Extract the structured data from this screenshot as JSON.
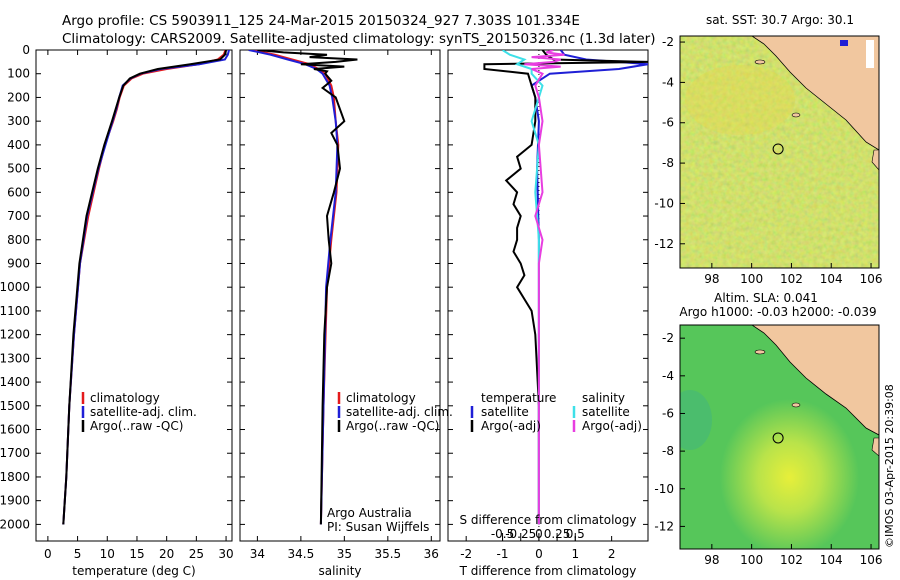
{
  "header": {
    "line1": "Argo profile: CS 5903911_125 24-Mar-2015 20150324_927 7.303S 101.334E",
    "line2": "Climatology: CARS2009. Satellite-adjusted climatology: synTS_20150326.nc (1.3d later)"
  },
  "colors": {
    "climatology": "#e41a1c",
    "satellite": "#1f1fd6",
    "argo": "#000000",
    "satellite_s": "#3ee0e8",
    "argo_s": "#e83ee0",
    "land": "#f1c79f",
    "sst_field": "#a6d84a",
    "sla_field": "#56c65a"
  },
  "chart_data": [
    {
      "type": "line",
      "id": "temperature",
      "xlabel": "temperature (deg C)",
      "ylabel": "",
      "xlim": [
        -2,
        31
      ],
      "ylim": [
        2070,
        0
      ],
      "xticks": [
        0,
        5,
        10,
        15,
        20,
        25,
        30
      ],
      "yticks": [
        0,
        100,
        200,
        300,
        400,
        500,
        600,
        700,
        800,
        900,
        1000,
        1100,
        1200,
        1300,
        1400,
        1500,
        1600,
        1700,
        1800,
        1900,
        2000
      ],
      "legend": [
        "climatology",
        "satellite-adj. clim.",
        "Argo(..raw -QC)"
      ],
      "series": [
        {
          "name": "climatology",
          "depth": [
            0,
            20,
            40,
            60,
            80,
            100,
            120,
            150,
            200,
            250,
            300,
            400,
            500,
            700,
            900,
            1200,
            1500,
            1800,
            2000
          ],
          "values": [
            29.9,
            29.6,
            28.6,
            25.5,
            20.0,
            16.0,
            14.1,
            12.8,
            12.1,
            11.6,
            11.0,
            9.6,
            8.6,
            6.8,
            5.4,
            4.4,
            3.6,
            3.1,
            2.6
          ]
        },
        {
          "name": "satellite",
          "depth": [
            0,
            20,
            40,
            60,
            80,
            100,
            120,
            150,
            200,
            250,
            300,
            400,
            500,
            700,
            900,
            1200,
            1500,
            1800,
            2000
          ],
          "values": [
            30.5,
            30.3,
            29.8,
            25.5,
            19.0,
            15.6,
            13.9,
            12.6,
            12.0,
            11.5,
            10.9,
            9.7,
            8.5,
            6.6,
            5.4,
            4.4,
            3.6,
            3.1,
            2.6
          ]
        },
        {
          "name": "argo",
          "depth": [
            0,
            20,
            40,
            60,
            80,
            100,
            120,
            150,
            200,
            250,
            300,
            400,
            500,
            700,
            900,
            1200,
            1500,
            1800,
            2000
          ],
          "values": [
            30.0,
            29.8,
            29.0,
            24.0,
            18.5,
            15.5,
            13.8,
            12.7,
            12.0,
            11.4,
            10.8,
            9.5,
            8.4,
            6.5,
            5.3,
            4.3,
            3.6,
            3.1,
            2.6
          ]
        }
      ]
    },
    {
      "type": "line",
      "id": "salinity",
      "xlabel": "salinity",
      "xlim": [
        33.8,
        36.1
      ],
      "ylim": [
        2070,
        0
      ],
      "xticks": [
        34,
        34.5,
        35,
        35.5,
        36
      ],
      "legend": [
        "climatology",
        "satellite-adj. clim.",
        "Argo(..raw -QC)"
      ],
      "annotation": [
        "Argo Australia",
        "PI: Susan Wijffels"
      ],
      "series": [
        {
          "name": "climatology",
          "depth": [
            0,
            20,
            40,
            60,
            80,
            100,
            150,
            200,
            300,
            400,
            600,
            800,
            1000,
            1500,
            2000
          ],
          "values": [
            33.95,
            34.2,
            34.4,
            34.6,
            34.7,
            34.78,
            34.85,
            34.88,
            34.9,
            34.93,
            34.91,
            34.85,
            34.8,
            34.76,
            34.73
          ]
        },
        {
          "name": "satellite",
          "depth": [
            0,
            20,
            40,
            60,
            80,
            100,
            150,
            200,
            300,
            400,
            600,
            800,
            1000,
            1500,
            2000
          ],
          "values": [
            33.9,
            34.15,
            34.35,
            34.55,
            34.68,
            34.75,
            34.83,
            34.86,
            34.9,
            34.92,
            34.9,
            34.84,
            34.79,
            34.76,
            34.73
          ]
        },
        {
          "name": "argo",
          "depth": [
            0,
            10,
            20,
            30,
            40,
            50,
            60,
            70,
            80,
            90,
            100,
            130,
            160,
            200,
            250,
            300,
            350,
            400,
            500,
            600,
            700,
            800,
            900,
            1000,
            1200,
            1500,
            2000
          ],
          "values": [
            34.0,
            34.3,
            34.8,
            34.6,
            35.15,
            34.9,
            34.5,
            35.0,
            34.65,
            34.8,
            34.78,
            34.85,
            34.75,
            34.9,
            34.95,
            35.0,
            34.85,
            34.92,
            34.95,
            34.88,
            34.8,
            34.82,
            34.85,
            34.8,
            34.77,
            34.75,
            34.73
          ]
        }
      ]
    },
    {
      "type": "line",
      "id": "difference",
      "xlabel": "T difference from climatology",
      "xlabel_top": "S difference from climatology",
      "xlim": [
        -2.5,
        3.0
      ],
      "ylim": [
        2070,
        0
      ],
      "xticks": [
        -2,
        -1,
        0,
        1,
        2
      ],
      "xticks_s": [
        -0.5,
        -0.25,
        0,
        0.25,
        0.5
      ],
      "legend_t": {
        "title": "temperature",
        "items": [
          "satellite",
          "Argo(-adj)"
        ]
      },
      "legend_s": {
        "title": "salinity",
        "items": [
          "satellite",
          "Argo(-adj)"
        ]
      },
      "series": [
        {
          "name": "T satellite",
          "depth": [
            0,
            20,
            40,
            60,
            80,
            100,
            150,
            200,
            300,
            500,
            800,
            1200,
            2000
          ],
          "values": [
            0.6,
            0.7,
            1.3,
            3.0,
            2.2,
            0.3,
            -0.2,
            -0.1,
            0.0,
            -0.05,
            0.0,
            0.0,
            0.0
          ]
        },
        {
          "name": "T argo",
          "depth": [
            0,
            20,
            40,
            50,
            60,
            80,
            100,
            150,
            200,
            300,
            400,
            450,
            500,
            550,
            600,
            650,
            700,
            750,
            800,
            850,
            900,
            950,
            1000,
            1050,
            1100,
            1200,
            1500,
            2000
          ],
          "values": [
            0.1,
            0.2,
            0.4,
            3.0,
            -1.5,
            -1.5,
            -0.3,
            -0.2,
            -0.1,
            -0.1,
            -0.2,
            -0.6,
            -0.5,
            -0.9,
            -0.6,
            -0.7,
            -0.5,
            -0.6,
            -0.6,
            -0.7,
            -0.5,
            -0.4,
            -0.6,
            -0.4,
            -0.2,
            -0.1,
            0.0,
            0.0
          ]
        },
        {
          "name": "S satellite",
          "depth": [
            0,
            20,
            40,
            60,
            80,
            100,
            150,
            200,
            300,
            400,
            600,
            800,
            1000,
            1200,
            1500,
            2000
          ],
          "values": [
            -0.5,
            -0.4,
            -0.2,
            -0.3,
            -0.1,
            -0.1,
            0.05,
            0.0,
            -0.1,
            0.0,
            -0.05,
            0.0,
            0.0,
            0.0,
            0.0,
            0.0
          ]
        },
        {
          "name": "S argo",
          "depth": [
            0,
            10,
            20,
            30,
            40,
            50,
            60,
            70,
            80,
            100,
            150,
            200,
            300,
            400,
            600,
            700,
            800,
            900,
            1000,
            1500,
            2000
          ],
          "values": [
            0.2,
            0.1,
            0.35,
            -0.1,
            0.3,
            0.2,
            -0.2,
            0.3,
            -0.1,
            0.05,
            -0.05,
            0.0,
            0.05,
            0.0,
            0.05,
            -0.05,
            0.05,
            0.0,
            0.0,
            0.0,
            0.0
          ]
        }
      ]
    },
    {
      "type": "heatmap",
      "id": "sst_map",
      "title": "sat. SST: 30.7  Argo: 30.1",
      "xlim": [
        96.4,
        106.4
      ],
      "ylim": [
        -13.2,
        -1.7
      ],
      "xticks": [
        98,
        100,
        102,
        104,
        106
      ],
      "yticks": [
        -2,
        -4,
        -6,
        -8,
        -10,
        -12
      ],
      "marker": {
        "lon": 101.33,
        "lat": -7.3
      }
    },
    {
      "type": "heatmap",
      "id": "sla_map",
      "title1": "Altim. SLA: 0.041",
      "title2": "Argo h1000: -0.03 h2000: -0.039",
      "xlim": [
        96.4,
        106.4
      ],
      "ylim": [
        -13.2,
        -1.3
      ],
      "xticks": [
        98,
        100,
        102,
        104,
        106
      ],
      "yticks": [
        -2,
        -4,
        -6,
        -8,
        -10,
        -12
      ],
      "marker": {
        "lon": 101.33,
        "lat": -7.3
      }
    }
  ],
  "credit": "©IMOS 03-Apr-2015 20:39:08"
}
